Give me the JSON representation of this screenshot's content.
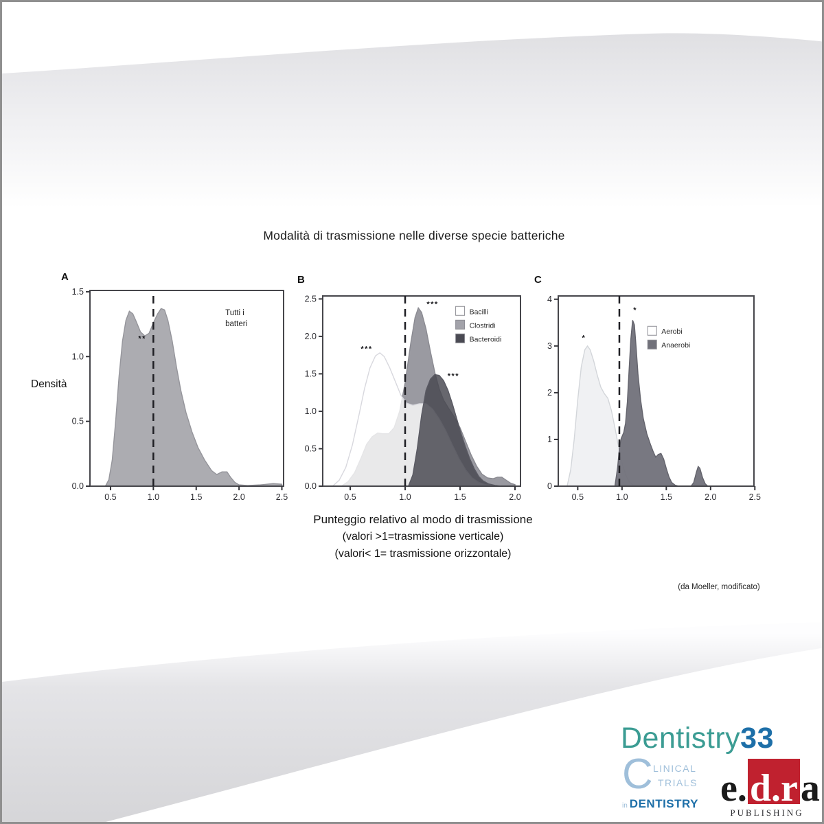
{
  "page": {
    "title": "Modalità di trasmissione nelle diverse specie batteriche",
    "ylabel": "Densità",
    "caption_line1": "Punteggio relativo al modo di trasmissione",
    "caption_line2": "(valori >1=trasmissione verticale)",
    "caption_line3": "(valori< 1= trasmissione orizzontale)",
    "attribution": "(da Moeller, modificato)"
  },
  "branding": {
    "dentistry33": {
      "part1": "Dentistry",
      "part2": "33",
      "teal": "#3b9c93",
      "blue": "#1d6fa8"
    },
    "clinical_trials": {
      "c": "C",
      "line1": "LINICAL",
      "line2": "TRIALS",
      "in_word": "in",
      "line3": "DENTISTRY",
      "light_blue": "#9fbfda",
      "dark_blue": "#1d6fa8"
    },
    "edra": {
      "e": "e.",
      "dr": "d.r",
      "a": "a",
      "publishing": "PUBLISHING",
      "red": "#c0212f"
    }
  },
  "chart_data": [
    {
      "id": "A",
      "panel_label": "A",
      "type": "area",
      "xlim": [
        0.26,
        2.52
      ],
      "ylim": [
        0,
        1.51
      ],
      "xticks": [
        0.5,
        1.0,
        1.5,
        2.0,
        2.5
      ],
      "xtick_labels": [
        "0.5",
        "1.0",
        "1.5",
        "2.0",
        "2.5"
      ],
      "yticks": [
        0.0,
        0.5,
        1.0,
        1.5
      ],
      "ytick_labels": [
        "0.0",
        "0.5",
        "1.0",
        "1.5"
      ],
      "dashed_line_x": 1.0,
      "inner_label": [
        "Tutti i",
        "batteri"
      ],
      "inner_label_pos": [
        1.84,
        1.32
      ],
      "annotations": [
        {
          "text": "**",
          "x": 0.87,
          "y": 1.12
        }
      ],
      "series": [
        {
          "name": "Tutti i batteri",
          "fill": "#a8a8ad",
          "fill_opacity": 0.95,
          "stroke": "#95959b",
          "points": [
            [
              0.44,
              0
            ],
            [
              0.48,
              0.05
            ],
            [
              0.52,
              0.2
            ],
            [
              0.56,
              0.5
            ],
            [
              0.6,
              0.85
            ],
            [
              0.64,
              1.12
            ],
            [
              0.68,
              1.28
            ],
            [
              0.72,
              1.35
            ],
            [
              0.76,
              1.33
            ],
            [
              0.8,
              1.27
            ],
            [
              0.85,
              1.19
            ],
            [
              0.9,
              1.16
            ],
            [
              0.95,
              1.18
            ],
            [
              1.0,
              1.26
            ],
            [
              1.05,
              1.33
            ],
            [
              1.09,
              1.37
            ],
            [
              1.13,
              1.36
            ],
            [
              1.17,
              1.28
            ],
            [
              1.22,
              1.12
            ],
            [
              1.27,
              0.92
            ],
            [
              1.32,
              0.74
            ],
            [
              1.38,
              0.57
            ],
            [
              1.45,
              0.42
            ],
            [
              1.52,
              0.3
            ],
            [
              1.6,
              0.2
            ],
            [
              1.68,
              0.12
            ],
            [
              1.74,
              0.09
            ],
            [
              1.8,
              0.11
            ],
            [
              1.86,
              0.11
            ],
            [
              1.9,
              0.07
            ],
            [
              1.95,
              0.03
            ],
            [
              2.0,
              0.01
            ],
            [
              2.1,
              0.005
            ],
            [
              2.25,
              0.01
            ],
            [
              2.4,
              0.02
            ],
            [
              2.5,
              0.015
            ]
          ]
        }
      ]
    },
    {
      "id": "B",
      "panel_label": "B",
      "type": "area",
      "xlim": [
        0.25,
        2.05
      ],
      "ylim": [
        0,
        2.54
      ],
      "xticks": [
        0.5,
        1.0,
        1.5,
        2.0
      ],
      "xtick_labels": [
        "0.5",
        "1.0",
        "1.5",
        "2.0"
      ],
      "yticks": [
        0.0,
        0.5,
        1.0,
        1.5,
        2.0,
        2.5
      ],
      "ytick_labels": [
        "0.0",
        "0.5",
        "1.0",
        "1.5",
        "2.0",
        "2.5"
      ],
      "dashed_line_x": 1.0,
      "legend": [
        {
          "label": "Bacilli",
          "fill": "#ffffff"
        },
        {
          "label": "Clostridi",
          "fill": "#a3a3aa"
        },
        {
          "label": "Bacteroidi",
          "fill": "#4a4a53"
        }
      ],
      "legend_pos": [
        1.46,
        2.4
      ],
      "annotations": [
        {
          "text": "***",
          "x": 0.65,
          "y": 1.8
        },
        {
          "text": "***",
          "x": 1.25,
          "y": 2.4
        },
        {
          "text": "***",
          "x": 1.44,
          "y": 1.44
        }
      ],
      "series": [
        {
          "name": "Clostridi",
          "fill": "#9a9aa1",
          "fill_opacity": 1,
          "stroke": "#8a8a91",
          "points": [
            [
              0.42,
              0
            ],
            [
              0.48,
              0.06
            ],
            [
              0.54,
              0.18
            ],
            [
              0.6,
              0.38
            ],
            [
              0.65,
              0.56
            ],
            [
              0.7,
              0.66
            ],
            [
              0.75,
              0.71
            ],
            [
              0.8,
              0.7
            ],
            [
              0.85,
              0.7
            ],
            [
              0.9,
              0.78
            ],
            [
              0.95,
              1.0
            ],
            [
              1.0,
              1.38
            ],
            [
              1.05,
              1.9
            ],
            [
              1.09,
              2.25
            ],
            [
              1.12,
              2.38
            ],
            [
              1.15,
              2.32
            ],
            [
              1.19,
              2.1
            ],
            [
              1.23,
              1.8
            ],
            [
              1.27,
              1.52
            ],
            [
              1.31,
              1.3
            ],
            [
              1.35,
              1.15
            ],
            [
              1.4,
              1.03
            ],
            [
              1.45,
              0.92
            ],
            [
              1.5,
              0.78
            ],
            [
              1.55,
              0.6
            ],
            [
              1.6,
              0.42
            ],
            [
              1.65,
              0.27
            ],
            [
              1.7,
              0.16
            ],
            [
              1.75,
              0.11
            ],
            [
              1.8,
              0.1
            ],
            [
              1.84,
              0.12
            ],
            [
              1.88,
              0.12
            ],
            [
              1.92,
              0.08
            ],
            [
              1.96,
              0.04
            ],
            [
              2.0,
              0.02
            ]
          ]
        },
        {
          "name": "Bacilli",
          "fill": "#ffffff",
          "fill_opacity": 0.78,
          "stroke": "#d8d8de",
          "points": [
            [
              0.34,
              0
            ],
            [
              0.4,
              0.08
            ],
            [
              0.46,
              0.25
            ],
            [
              0.52,
              0.55
            ],
            [
              0.58,
              0.95
            ],
            [
              0.63,
              1.3
            ],
            [
              0.68,
              1.58
            ],
            [
              0.73,
              1.74
            ],
            [
              0.77,
              1.78
            ],
            [
              0.81,
              1.73
            ],
            [
              0.86,
              1.58
            ],
            [
              0.91,
              1.4
            ],
            [
              0.96,
              1.22
            ],
            [
              1.01,
              1.11
            ],
            [
              1.07,
              1.08
            ],
            [
              1.13,
              1.1
            ],
            [
              1.19,
              1.1
            ],
            [
              1.25,
              1.03
            ],
            [
              1.31,
              0.9
            ],
            [
              1.37,
              0.74
            ],
            [
              1.43,
              0.55
            ],
            [
              1.49,
              0.37
            ],
            [
              1.55,
              0.22
            ],
            [
              1.61,
              0.11
            ],
            [
              1.67,
              0.05
            ],
            [
              1.73,
              0.02
            ],
            [
              1.8,
              0.01
            ],
            [
              1.9,
              0
            ]
          ]
        },
        {
          "name": "Bacteroidi",
          "fill": "#45454e",
          "fill_opacity": 0.82,
          "stroke": "#5a5a63",
          "points": [
            [
              1.03,
              0
            ],
            [
              1.07,
              0.15
            ],
            [
              1.11,
              0.5
            ],
            [
              1.15,
              0.95
            ],
            [
              1.19,
              1.28
            ],
            [
              1.23,
              1.43
            ],
            [
              1.27,
              1.49
            ],
            [
              1.31,
              1.48
            ],
            [
              1.35,
              1.41
            ],
            [
              1.39,
              1.28
            ],
            [
              1.43,
              1.1
            ],
            [
              1.47,
              0.9
            ],
            [
              1.51,
              0.7
            ],
            [
              1.55,
              0.52
            ],
            [
              1.59,
              0.36
            ],
            [
              1.63,
              0.23
            ],
            [
              1.67,
              0.13
            ],
            [
              1.71,
              0.07
            ],
            [
              1.76,
              0.03
            ],
            [
              1.82,
              0.01
            ],
            [
              1.88,
              0
            ]
          ]
        }
      ]
    },
    {
      "id": "C",
      "panel_label": "C",
      "type": "area",
      "xlim": [
        0.28,
        2.49
      ],
      "ylim": [
        0,
        4.07
      ],
      "xticks": [
        0.5,
        1.0,
        1.5,
        2.0,
        2.5
      ],
      "xtick_labels": [
        "0.5",
        "1.0",
        "1.5",
        "2.0",
        "2.5"
      ],
      "yticks": [
        0,
        1,
        2,
        3,
        4
      ],
      "ytick_labels": [
        "0",
        "1",
        "2",
        "3",
        "4"
      ],
      "dashed_line_x": 0.97,
      "legend": [
        {
          "label": "Aerobi",
          "fill": "#ffffff"
        },
        {
          "label": "Anaerobi",
          "fill": "#71717a"
        }
      ],
      "legend_pos": [
        1.29,
        3.42
      ],
      "annotations": [
        {
          "text": "*",
          "x": 0.57,
          "y": 3.12
        },
        {
          "text": "*",
          "x": 1.15,
          "y": 3.72
        }
      ],
      "series": [
        {
          "name": "Aerobi",
          "fill": "#eef0f2",
          "fill_opacity": 0.9,
          "stroke": "#d3d6da",
          "points": [
            [
              0.38,
              0
            ],
            [
              0.42,
              0.35
            ],
            [
              0.46,
              1.0
            ],
            [
              0.5,
              1.85
            ],
            [
              0.54,
              2.55
            ],
            [
              0.58,
              2.92
            ],
            [
              0.61,
              3.0
            ],
            [
              0.64,
              2.92
            ],
            [
              0.68,
              2.68
            ],
            [
              0.72,
              2.38
            ],
            [
              0.76,
              2.12
            ],
            [
              0.8,
              1.98
            ],
            [
              0.84,
              1.88
            ],
            [
              0.88,
              1.62
            ],
            [
              0.92,
              1.25
            ],
            [
              0.96,
              0.85
            ],
            [
              1.0,
              0.5
            ],
            [
              1.04,
              0.25
            ],
            [
              1.08,
              0.1
            ],
            [
              1.12,
              0.03
            ],
            [
              1.16,
              0
            ]
          ]
        },
        {
          "name": "Anaerobi",
          "fill": "#71717a",
          "fill_opacity": 0.95,
          "stroke": "#63636c",
          "points": [
            [
              0.92,
              0
            ],
            [
              0.95,
              0.4
            ],
            [
              0.97,
              0.8
            ],
            [
              0.99,
              1.02
            ],
            [
              1.02,
              1.15
            ],
            [
              1.04,
              1.35
            ],
            [
              1.06,
              1.8
            ],
            [
              1.08,
              2.5
            ],
            [
              1.1,
              3.15
            ],
            [
              1.12,
              3.55
            ],
            [
              1.14,
              3.45
            ],
            [
              1.16,
              2.95
            ],
            [
              1.18,
              2.4
            ],
            [
              1.21,
              1.85
            ],
            [
              1.24,
              1.45
            ],
            [
              1.28,
              1.12
            ],
            [
              1.32,
              0.9
            ],
            [
              1.35,
              0.75
            ],
            [
              1.38,
              0.62
            ],
            [
              1.41,
              0.68
            ],
            [
              1.44,
              0.7
            ],
            [
              1.47,
              0.58
            ],
            [
              1.5,
              0.38
            ],
            [
              1.53,
              0.2
            ],
            [
              1.56,
              0.08
            ],
            [
              1.6,
              0.02
            ],
            [
              1.64,
              0
            ],
            [
              1.78,
              0
            ],
            [
              1.81,
              0.08
            ],
            [
              1.84,
              0.3
            ],
            [
              1.86,
              0.42
            ],
            [
              1.88,
              0.38
            ],
            [
              1.91,
              0.18
            ],
            [
              1.94,
              0.05
            ],
            [
              1.97,
              0
            ]
          ]
        }
      ]
    }
  ]
}
